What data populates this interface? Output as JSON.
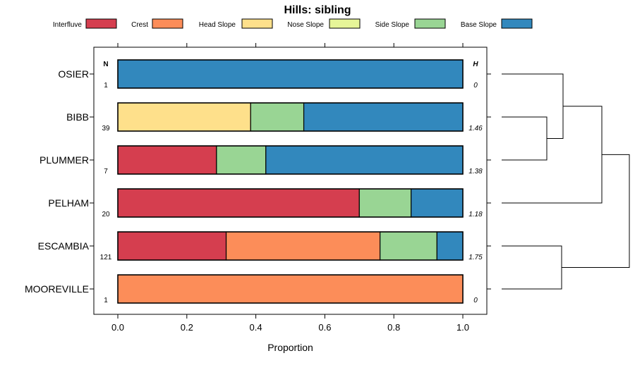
{
  "chart_data": {
    "type": "bar",
    "orientation": "horizontal",
    "stacked": true,
    "title": "Hills: sibling",
    "xlabel": "Proportion",
    "xlim": [
      0,
      1
    ],
    "xticks": [
      "0.0",
      "0.2",
      "0.4",
      "0.6",
      "0.8",
      "1.0"
    ],
    "xtick_values": [
      0,
      0.2,
      0.4,
      0.6,
      0.8,
      1.0
    ],
    "legend_position": "top",
    "n_header": "N",
    "h_header": "H",
    "categories": [
      "OSIER",
      "BIBB",
      "PLUMMER",
      "PELHAM",
      "ESCAMBIA",
      "MOOREVILLE"
    ],
    "n_values": [
      "1",
      "39",
      "7",
      "20",
      "121",
      "1"
    ],
    "h_values": [
      "0",
      "1.46",
      "1.38",
      "1.18",
      "1.75",
      "0"
    ],
    "series": [
      {
        "name": "Interfluve",
        "color": "#D53E4F",
        "values": [
          0,
          0,
          0.286,
          0.7,
          0.314,
          0
        ]
      },
      {
        "name": "Crest",
        "color": "#FC8D59",
        "values": [
          0,
          0,
          0,
          0,
          0.446,
          1.0
        ]
      },
      {
        "name": "Head Slope",
        "color": "#FEE08B",
        "values": [
          0,
          0.385,
          0,
          0,
          0,
          0
        ]
      },
      {
        "name": "Nose Slope",
        "color": "#E6F598",
        "values": [
          0,
          0,
          0,
          0,
          0,
          0
        ]
      },
      {
        "name": "Side Slope",
        "color": "#99D594",
        "values": [
          0,
          0.154,
          0.143,
          0.15,
          0.165,
          0
        ]
      },
      {
        "name": "Base Slope",
        "color": "#3288BD",
        "values": [
          1.0,
          0.461,
          0.571,
          0.15,
          0.075,
          0
        ]
      }
    ],
    "dendrogram": {
      "type": "hierarchical-clustering",
      "merges": [
        [
          "BIBB",
          "PLUMMER"
        ],
        [
          "OSIER",
          "BIBB+PLUMMER"
        ],
        [
          "ESCAMBIA",
          "MOOREVILLE"
        ],
        [
          "OSIER+BIBB+PLUMMER",
          "PELHAM"
        ],
        [
          "OSIER+BIBB+PLUMMER+PELHAM",
          "ESCAMBIA+MOOREVILLE"
        ]
      ]
    }
  }
}
